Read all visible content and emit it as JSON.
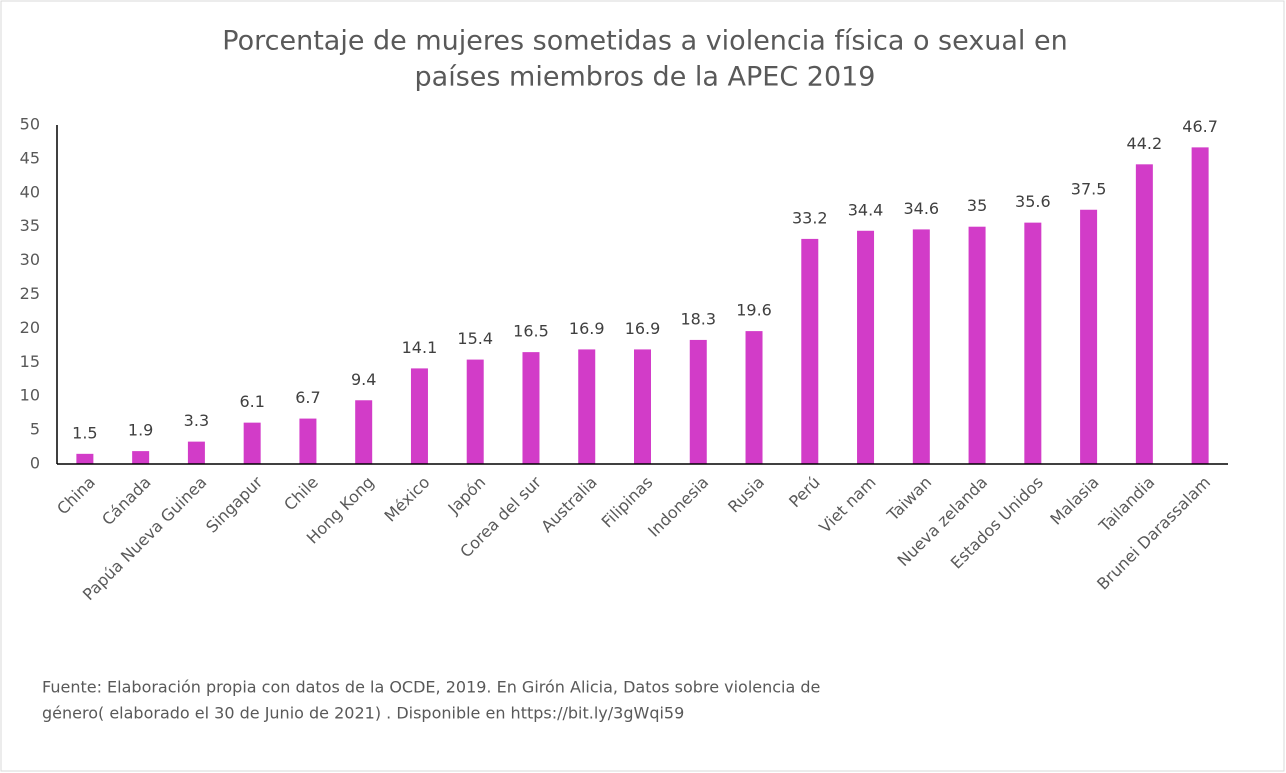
{
  "chart_data": {
    "type": "bar",
    "title": [
      "Porcentaje de mujeres sometidas a violencia física o sexual en",
      "países  miembros de la APEC  2019"
    ],
    "categories": [
      "China",
      "Cánada",
      "Papúa Nueva Guinea",
      "Singapur",
      "Chile",
      "Hong Kong",
      "México",
      "Japón",
      "Corea del sur",
      "Australia",
      "Filipinas",
      "Indonesia",
      "Rusia",
      "Perú",
      "Viet nam",
      "Taiwan",
      "Nueva zelanda",
      "Estados Unidos",
      "Malasia",
      "Tailandia",
      "Brunei Darassalam"
    ],
    "values": [
      1.5,
      1.9,
      3.3,
      6.1,
      6.7,
      9.4,
      14.1,
      15.4,
      16.5,
      16.9,
      16.9,
      18.3,
      19.6,
      33.2,
      34.4,
      34.6,
      35,
      35.6,
      37.5,
      44.2,
      46.7
    ],
    "color": "#d23cc8",
    "ylim": [
      0,
      50
    ],
    "yticks": [
      0,
      5,
      10,
      15,
      20,
      25,
      30,
      35,
      40,
      45,
      50
    ],
    "grid": false,
    "note": [
      "Fuente: Elaboración propia con datos de la OCDE, 2019.  En Girón Alicia, Datos sobre violencia de",
      "género( elaborado el 30 de Junio de 2021)  . Disponible en https://bit.ly/3gWqi59"
    ]
  }
}
